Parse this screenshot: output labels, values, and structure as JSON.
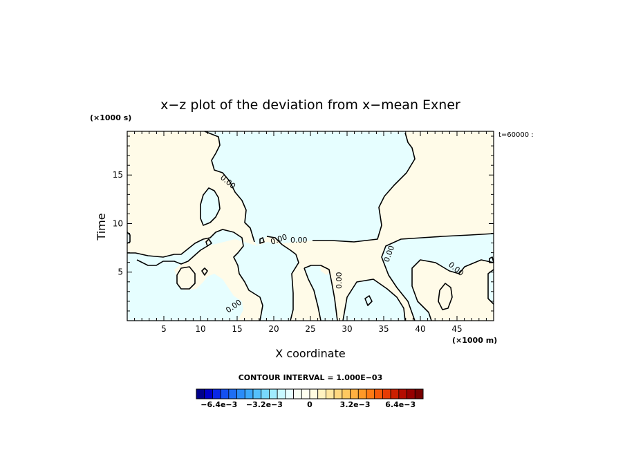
{
  "chart_data": {
    "type": "contour",
    "title": "x−z plot of the deviation from x−mean Exner",
    "xlabel": "X coordinate",
    "ylabel": "Time",
    "x_unit": "(×1000 m)",
    "y_unit": "(×1000 s)",
    "xlim": [
      0,
      50
    ],
    "ylim": [
      0,
      19.5
    ],
    "xticks": [
      5,
      10,
      15,
      20,
      25,
      30,
      35,
      40,
      45
    ],
    "yticks": [
      5,
      10,
      15
    ],
    "time_label": "t=60000 :",
    "contour_interval_text": "CONTOUR INTERVAL = 1.000E−03",
    "contour_levels_labeled": [
      "0.00"
    ],
    "colorbar": {
      "tick_labels": [
        "−6.4e−3",
        "−3.2e−3",
        "0",
        "3.2e−3",
        "6.4e−3"
      ],
      "tick_values": [
        -0.0064,
        -0.0032,
        0,
        0.0032,
        0.0064
      ],
      "range": [
        -0.008,
        0.008
      ],
      "colors": [
        "#00008b",
        "#0000c8",
        "#0a28e6",
        "#1450f0",
        "#1e6ef5",
        "#2a8cf8",
        "#3ca8fa",
        "#55c0fc",
        "#78d8fd",
        "#a0ecfe",
        "#c8f8ff",
        "#e6feff",
        "#f8fff4",
        "#fffff0",
        "#fffbe0",
        "#fff2c0",
        "#ffe6a0",
        "#ffd880",
        "#ffc860",
        "#ffb040",
        "#ff9828",
        "#ff7a14",
        "#f55a0a",
        "#e63c05",
        "#cc2000",
        "#b40c00",
        "#960000",
        "#780000"
      ]
    },
    "regions": {
      "negative_fill": "#e6feff",
      "positive_fill": "#fffbe8"
    }
  }
}
